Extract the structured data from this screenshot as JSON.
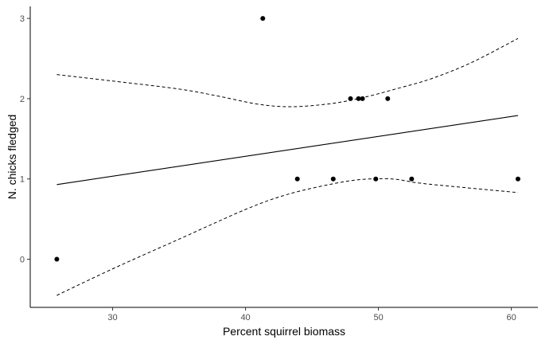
{
  "chart_data": {
    "type": "scatter",
    "title": "",
    "xlabel": "Percent squirrel biomass",
    "ylabel": "N. chicks fledged",
    "xlim": [
      23.8,
      62.0
    ],
    "ylim": [
      -0.6,
      3.15
    ],
    "x_ticks": [
      30,
      40,
      50,
      60
    ],
    "y_ticks": [
      0,
      1,
      2,
      3
    ],
    "grid": false,
    "legend": "none",
    "points": [
      {
        "x": 25.8,
        "y": 0
      },
      {
        "x": 41.3,
        "y": 3
      },
      {
        "x": 43.9,
        "y": 1
      },
      {
        "x": 46.6,
        "y": 1
      },
      {
        "x": 47.9,
        "y": 2
      },
      {
        "x": 48.5,
        "y": 2
      },
      {
        "x": 48.8,
        "y": 2
      },
      {
        "x": 49.8,
        "y": 1
      },
      {
        "x": 50.7,
        "y": 2
      },
      {
        "x": 52.5,
        "y": 1
      },
      {
        "x": 60.5,
        "y": 1
      }
    ],
    "fit_line": [
      {
        "x": 25.8,
        "y": 0.93
      },
      {
        "x": 60.5,
        "y": 1.79
      }
    ],
    "upper_ci": [
      {
        "x": 25.8,
        "y": 2.3
      },
      {
        "x": 30.0,
        "y": 2.22
      },
      {
        "x": 35.0,
        "y": 2.12
      },
      {
        "x": 38.0,
        "y": 2.03
      },
      {
        "x": 41.0,
        "y": 1.93
      },
      {
        "x": 43.5,
        "y": 1.9
      },
      {
        "x": 46.5,
        "y": 1.94
      },
      {
        "x": 49.0,
        "y": 2.02
      },
      {
        "x": 51.5,
        "y": 2.13
      },
      {
        "x": 54.0,
        "y": 2.25
      },
      {
        "x": 57.0,
        "y": 2.45
      },
      {
        "x": 60.5,
        "y": 2.75
      }
    ],
    "lower_ci": [
      {
        "x": 25.8,
        "y": -0.45
      },
      {
        "x": 30.0,
        "y": -0.12
      },
      {
        "x": 35.0,
        "y": 0.25
      },
      {
        "x": 40.0,
        "y": 0.62
      },
      {
        "x": 43.0,
        "y": 0.8
      },
      {
        "x": 46.0,
        "y": 0.92
      },
      {
        "x": 48.5,
        "y": 0.99
      },
      {
        "x": 51.0,
        "y": 1.0
      },
      {
        "x": 53.0,
        "y": 0.95
      },
      {
        "x": 56.0,
        "y": 0.9
      },
      {
        "x": 60.5,
        "y": 0.83
      }
    ],
    "colors": {
      "points": "#000000",
      "lines": "#000000",
      "tick_labels": "#4d4d4d"
    }
  }
}
